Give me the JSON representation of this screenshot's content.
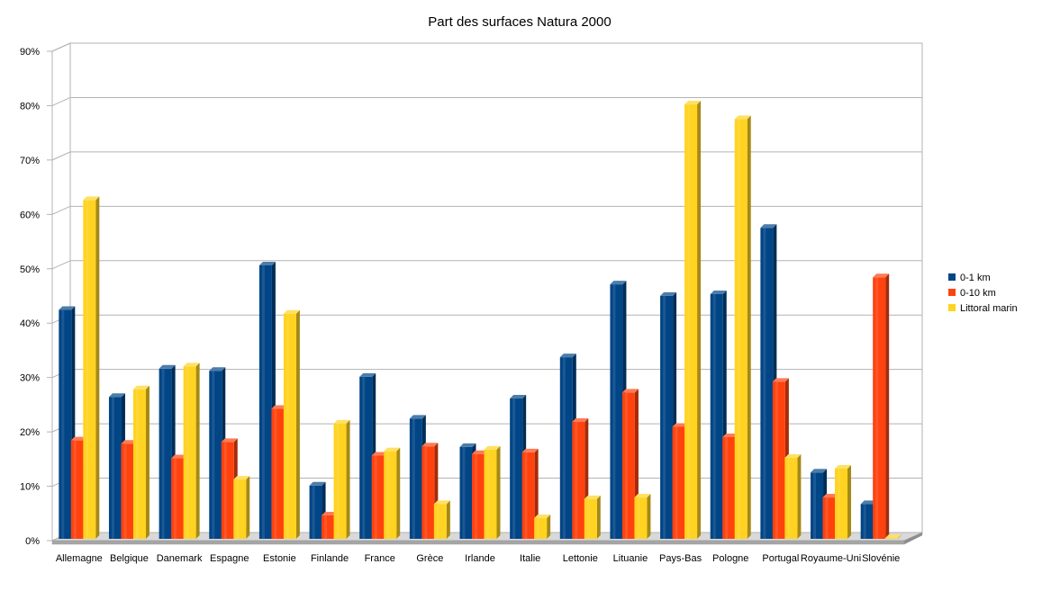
{
  "chart_data": {
    "type": "bar",
    "title": "Part des surfaces Natura 2000",
    "xlabel": "",
    "ylabel": "",
    "ylim": [
      0,
      90
    ],
    "y_ticks": [
      0,
      10,
      20,
      30,
      40,
      50,
      60,
      70,
      80,
      90
    ],
    "y_tick_labels": [
      "0%",
      "10%",
      "20%",
      "30%",
      "40%",
      "50%",
      "60%",
      "70%",
      "80%",
      "90%"
    ],
    "grid": true,
    "legend_position": "right",
    "categories": [
      "Allemagne",
      "Belgique",
      "Danemark",
      "Espagne",
      "Estonie",
      "Finlande",
      "France",
      "Grèce",
      "Irlande",
      "Italie",
      "Lettonie",
      "Lituanie",
      "Pays-Bas",
      "Pologne",
      "Portugal",
      "Royaume-Uni",
      "Slovénie"
    ],
    "series": [
      {
        "name": "0-1 km",
        "color": "#004586",
        "values": [
          42.1,
          26.1,
          31.3,
          30.9,
          50.3,
          9.8,
          29.8,
          22.1,
          16.9,
          25.8,
          33.4,
          46.8,
          44.7,
          45.0,
          57.2,
          12.2,
          6.4
        ]
      },
      {
        "name": "0-10 km",
        "color": "#ff420e",
        "values": [
          18.1,
          17.5,
          14.8,
          17.8,
          23.9,
          4.3,
          15.3,
          17.0,
          15.6,
          15.9,
          21.5,
          26.9,
          20.6,
          18.7,
          28.9,
          7.6,
          48.1
        ]
      },
      {
        "name": "Littoral marin",
        "color": "#ffd320",
        "values": [
          62.3,
          27.5,
          31.7,
          10.9,
          41.4,
          21.2,
          16.1,
          6.4,
          16.4,
          3.8,
          7.3,
          7.6,
          79.9,
          77.2,
          14.9,
          12.9,
          0.1
        ]
      }
    ]
  }
}
